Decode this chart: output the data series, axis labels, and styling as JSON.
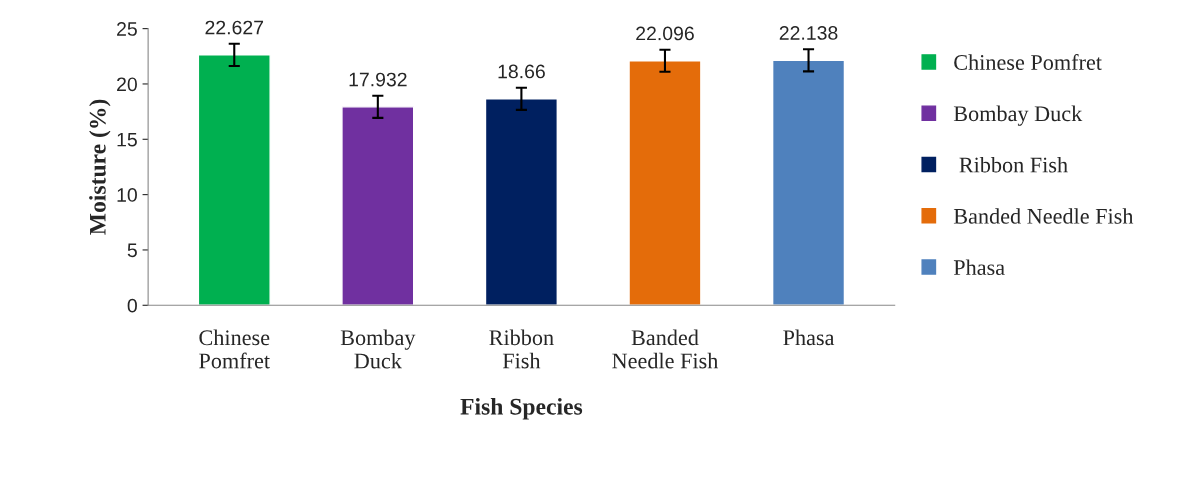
{
  "chart_data": {
    "type": "bar",
    "xlabel": "Fish Species",
    "ylabel": "Moisture (%)",
    "categories": [
      "Chinese\nPomfret",
      "Bombay\nDuck",
      "Ribbon\nFish",
      "Banded\nNeedle Fish",
      "Phasa"
    ],
    "series": [
      {
        "name": "Chinese Pomfret",
        "color": "#00b050",
        "values": [
          22.627,
          null,
          null,
          null,
          null
        ],
        "errors": [
          1,
          null,
          null,
          null,
          null
        ]
      },
      {
        "name": "Bombay Duck",
        "color": "#7030a0",
        "values": [
          null,
          17.932,
          null,
          null,
          null
        ],
        "errors": [
          null,
          1,
          null,
          null,
          null
        ]
      },
      {
        "name": " Ribbon Fish",
        "color": "#002060",
        "values": [
          null,
          null,
          18.66,
          null,
          null
        ],
        "errors": [
          null,
          null,
          1,
          null,
          null
        ]
      },
      {
        "name": "Banded Needle Fish",
        "color": "#e46c0a",
        "values": [
          null,
          null,
          null,
          22.096,
          null
        ],
        "errors": [
          null,
          null,
          null,
          1,
          null
        ]
      },
      {
        "name": "Phasa",
        "color": "#4f81bd",
        "values": [
          null,
          null,
          null,
          null,
          22.138
        ],
        "errors": [
          null,
          null,
          null,
          null,
          1
        ]
      }
    ],
    "ylim": [
      0,
      25
    ],
    "yticks": [
      0,
      5,
      10,
      15,
      20,
      25
    ],
    "grid": false,
    "legend": "right",
    "data_labels": true
  }
}
